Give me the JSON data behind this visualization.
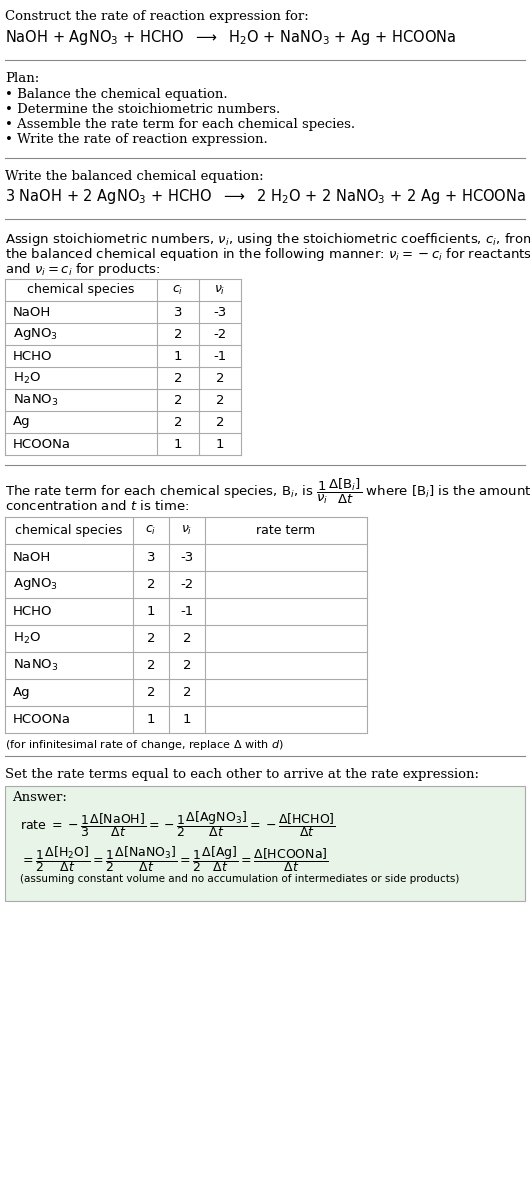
{
  "title_line1": "Construct the rate of reaction expression for:",
  "plan_header": "Plan:",
  "plan_items": [
    "• Balance the chemical equation.",
    "• Determine the stoichiometric numbers.",
    "• Assemble the rate term for each chemical species.",
    "• Write the rate of reaction expression."
  ],
  "balanced_header": "Write the balanced chemical equation:",
  "table1_rows": [
    [
      "NaOH",
      "3",
      "-3"
    ],
    [
      "AgNO_3",
      "2",
      "-2"
    ],
    [
      "HCHO",
      "1",
      "-1"
    ],
    [
      "H_2O",
      "2",
      "2"
    ],
    [
      "NaNO_3",
      "2",
      "2"
    ],
    [
      "Ag",
      "2",
      "2"
    ],
    [
      "HCOONa",
      "1",
      "1"
    ]
  ],
  "table2_rows": [
    [
      "NaOH",
      "3",
      "-3"
    ],
    [
      "AgNO_3",
      "2",
      "-2"
    ],
    [
      "HCHO",
      "1",
      "-1"
    ],
    [
      "H_2O",
      "2",
      "2"
    ],
    [
      "NaNO_3",
      "2",
      "2"
    ],
    [
      "Ag",
      "2",
      "2"
    ],
    [
      "HCOONa",
      "1",
      "1"
    ]
  ],
  "answer_header": "Set the rate terms equal to each other to arrive at the rate expression:",
  "answer_label": "Answer:",
  "answer_box_color": "#e8f4e8",
  "bg_color": "#ffffff",
  "text_color": "#000000",
  "table_border_color": "#aaaaaa",
  "font_size": 9.5,
  "font_family": "DejaVu Serif"
}
